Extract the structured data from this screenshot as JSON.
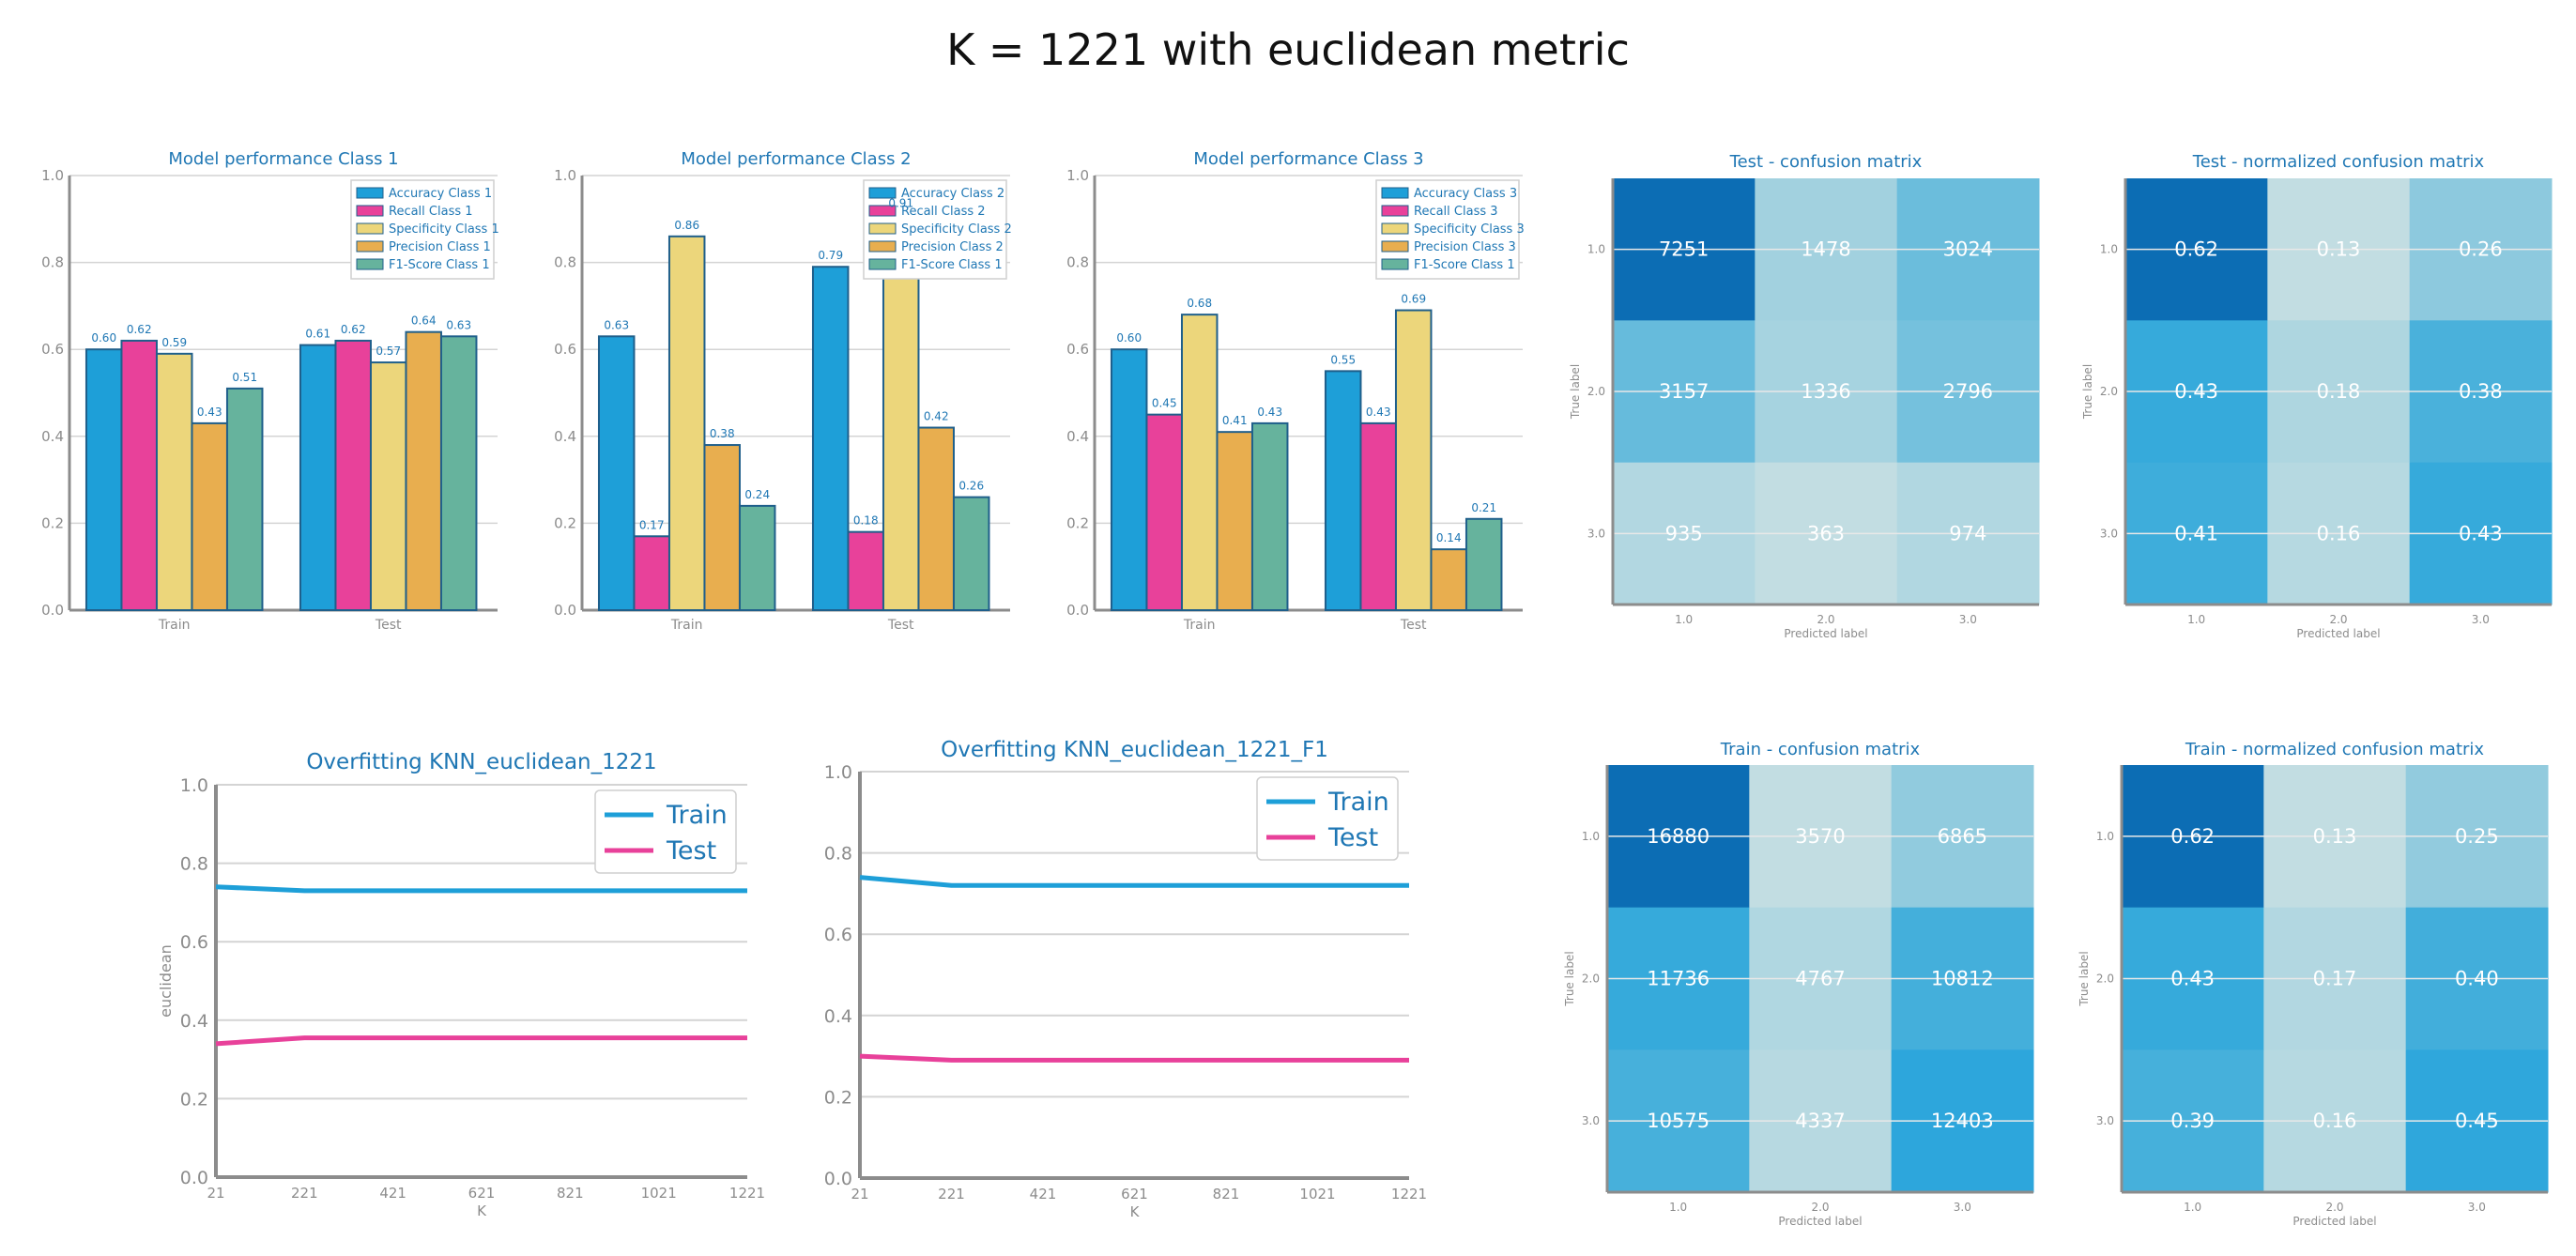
{
  "suptitle": "K = 1221 with euclidean metric",
  "colors": {
    "accuracy": "#1e9fd8",
    "recall": "#e8419a",
    "specificity": "#ecd67b",
    "precision": "#e8ae4f",
    "f1": "#66b39d",
    "train_line": "#1e9fd8",
    "test_line": "#e8419a",
    "title": "#1f77b4",
    "grid": "#d4d4d4",
    "axis": "#8c8c8c"
  },
  "chart_data": [
    {
      "id": "perf1",
      "type": "bar",
      "title": "Model performance Class 1",
      "categories": [
        "Train",
        "Test"
      ],
      "ylim": [
        0,
        1.0
      ],
      "yticks": [
        "0.0",
        "0.2",
        "0.4",
        "0.6",
        "0.8",
        "1.0"
      ],
      "series": [
        {
          "name": "Accuracy Class 1",
          "color": "accuracy",
          "values": [
            0.6,
            0.61
          ]
        },
        {
          "name": "Recall Class 1",
          "color": "recall",
          "values": [
            0.62,
            0.62
          ]
        },
        {
          "name": "Specificity Class 1",
          "color": "specificity",
          "values": [
            0.59,
            0.57
          ]
        },
        {
          "name": "Precision Class 1",
          "color": "precision",
          "values": [
            0.43,
            0.64
          ]
        },
        {
          "name": "F1-Score Class 1",
          "color": "f1",
          "values": [
            0.51,
            0.63
          ]
        }
      ]
    },
    {
      "id": "perf2",
      "type": "bar",
      "title": "Model performance Class 2",
      "categories": [
        "Train",
        "Test"
      ],
      "ylim": [
        0,
        1.0
      ],
      "yticks": [
        "0.0",
        "0.2",
        "0.4",
        "0.6",
        "0.8",
        "1.0"
      ],
      "series": [
        {
          "name": "Accuracy Class 2",
          "color": "accuracy",
          "values": [
            0.63,
            0.79
          ]
        },
        {
          "name": "Recall Class 2",
          "color": "recall",
          "values": [
            0.17,
            0.18
          ]
        },
        {
          "name": "Specificity Class 2",
          "color": "specificity",
          "values": [
            0.86,
            0.91
          ]
        },
        {
          "name": "Precision Class 2",
          "color": "precision",
          "values": [
            0.38,
            0.42
          ]
        },
        {
          "name": "F1-Score Class 1",
          "color": "f1",
          "values": [
            0.24,
            0.26
          ]
        }
      ]
    },
    {
      "id": "perf3",
      "type": "bar",
      "title": "Model performance Class 3",
      "categories": [
        "Train",
        "Test"
      ],
      "ylim": [
        0,
        1.0
      ],
      "yticks": [
        "0.0",
        "0.2",
        "0.4",
        "0.6",
        "0.8",
        "1.0"
      ],
      "series": [
        {
          "name": "Accuracy Class 3",
          "color": "accuracy",
          "values": [
            0.6,
            0.55
          ]
        },
        {
          "name": "Recall Class 3",
          "color": "recall",
          "values": [
            0.45,
            0.43
          ]
        },
        {
          "name": "Specificity Class 3",
          "color": "specificity",
          "values": [
            0.68,
            0.69
          ]
        },
        {
          "name": "Precision Class 3",
          "color": "precision",
          "values": [
            0.41,
            0.14
          ]
        },
        {
          "name": "F1-Score Class 1",
          "color": "f1",
          "values": [
            0.43,
            0.21
          ]
        }
      ]
    },
    {
      "id": "cm_test",
      "type": "heatmap",
      "title": "Test - confusion matrix",
      "xlabel": "Predicted label",
      "ylabel": "True label",
      "labels": [
        "1.0",
        "2.0",
        "3.0"
      ],
      "values": [
        [
          7251,
          1478,
          3024
        ],
        [
          3157,
          1336,
          2796
        ],
        [
          935,
          363,
          974
        ]
      ],
      "display": [
        "7251",
        "1478",
        "3024",
        "3157",
        "1336",
        "2796",
        "935",
        "363",
        "974"
      ]
    },
    {
      "id": "cm_test_norm",
      "type": "heatmap",
      "title": "Test - normalized confusion matrix",
      "xlabel": "Predicted label",
      "ylabel": "True label",
      "labels": [
        "1.0",
        "2.0",
        "3.0"
      ],
      "values": [
        [
          0.62,
          0.13,
          0.26
        ],
        [
          0.43,
          0.18,
          0.38
        ],
        [
          0.41,
          0.16,
          0.43
        ]
      ],
      "display": [
        "0.62",
        "0.13",
        "0.26",
        "0.43",
        "0.18",
        "0.38",
        "0.41",
        "0.16",
        "0.43"
      ]
    },
    {
      "id": "over1",
      "type": "line",
      "title": "Overfitting KNN_euclidean_1221",
      "xlabel": "K",
      "ylabel": "euclidean",
      "ylim": [
        0,
        1.0
      ],
      "x": [
        21,
        221,
        421,
        621,
        821,
        1021,
        1221
      ],
      "xticks": [
        "21",
        "221",
        "421",
        "621",
        "821",
        "1021",
        "1221"
      ],
      "yticks": [
        "0.0",
        "0.2",
        "0.4",
        "0.6",
        "0.8",
        "1.0"
      ],
      "legend": "top-right",
      "series": [
        {
          "name": "Train",
          "color": "train_line",
          "values": [
            0.74,
            0.73,
            0.73,
            0.73,
            0.73,
            0.73,
            0.73
          ]
        },
        {
          "name": "Test",
          "color": "test_line",
          "values": [
            0.34,
            0.355,
            0.355,
            0.355,
            0.355,
            0.355,
            0.355
          ]
        }
      ]
    },
    {
      "id": "over2",
      "type": "line",
      "title": "Overfitting KNN_euclidean_1221_F1",
      "xlabel": "K",
      "ylabel": "",
      "ylim": [
        0,
        1.0
      ],
      "x": [
        21,
        221,
        421,
        621,
        821,
        1021,
        1221
      ],
      "xticks": [
        "21",
        "221",
        "421",
        "621",
        "821",
        "1021",
        "1221"
      ],
      "yticks": [
        "0.0",
        "0.2",
        "0.4",
        "0.6",
        "0.8",
        "1.0"
      ],
      "legend": "top-right",
      "series": [
        {
          "name": "Train",
          "color": "train_line",
          "values": [
            0.74,
            0.72,
            0.72,
            0.72,
            0.72,
            0.72,
            0.72
          ]
        },
        {
          "name": "Test",
          "color": "test_line",
          "values": [
            0.3,
            0.29,
            0.29,
            0.29,
            0.29,
            0.29,
            0.29
          ]
        }
      ]
    },
    {
      "id": "cm_train",
      "type": "heatmap",
      "title": "Train - confusion matrix",
      "xlabel": "Predicted label",
      "ylabel": "True label",
      "labels": [
        "1.0",
        "2.0",
        "3.0"
      ],
      "values": [
        [
          16880,
          3570,
          6865
        ],
        [
          11736,
          4767,
          10812
        ],
        [
          10575,
          4337,
          12403
        ]
      ],
      "display": [
        "16880",
        "3570",
        "6865",
        "11736",
        "4767",
        "10812",
        "10575",
        "4337",
        "12403"
      ]
    },
    {
      "id": "cm_train_norm",
      "type": "heatmap",
      "title": "Train - normalized confusion matrix",
      "xlabel": "Predicted label",
      "ylabel": "True label",
      "labels": [
        "1.0",
        "2.0",
        "3.0"
      ],
      "values": [
        [
          0.62,
          0.13,
          0.25
        ],
        [
          0.43,
          0.17,
          0.4
        ],
        [
          0.39,
          0.16,
          0.45
        ]
      ],
      "display": [
        "0.62",
        "0.13",
        "0.25",
        "0.43",
        "0.17",
        "0.40",
        "0.39",
        "0.16",
        "0.45"
      ]
    }
  ]
}
